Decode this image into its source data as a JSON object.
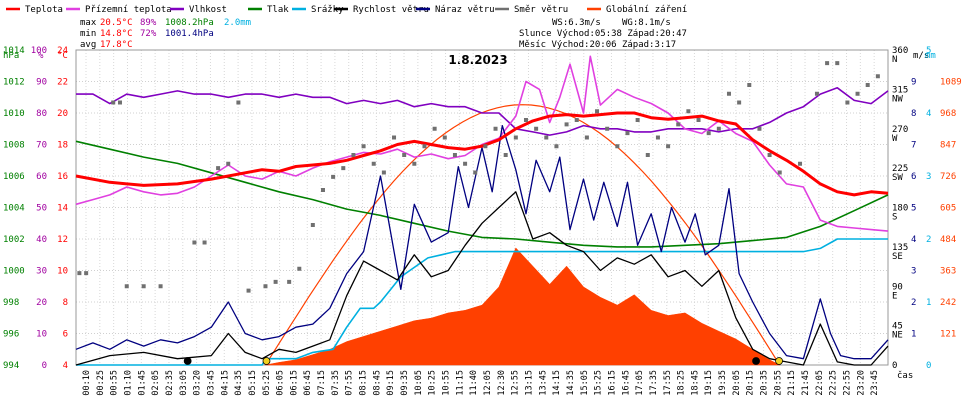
{
  "chart_data": {
    "type": "line",
    "title": "1.8.2023",
    "xlabel": "čas",
    "x_ticks": [
      "00:10",
      "00:25",
      "00:55",
      "01:10",
      "01:45",
      "02:05",
      "02:35",
      "03:05",
      "03:20",
      "03:45",
      "04:15",
      "04:35",
      "05:15",
      "05:25",
      "06:05",
      "06:15",
      "06:45",
      "07:15",
      "07:35",
      "07:55",
      "08:15",
      "08:45",
      "09:15",
      "09:35",
      "10:05",
      "10:25",
      "10:55",
      "11:15",
      "11:40",
      "12:05",
      "12:30",
      "12:55",
      "13:15",
      "13:45",
      "14:15",
      "14:35",
      "15:05",
      "15:25",
      "16:15",
      "16:45",
      "17:05",
      "17:35",
      "17:55",
      "18:25",
      "18:45",
      "19:15",
      "19:35",
      "20:05",
      "20:15",
      "20:35",
      "20:55",
      "21:15",
      "21:45",
      "22:05",
      "22:25",
      "22:55",
      "23:20",
      "23:45"
    ],
    "axes": {
      "hpa": {
        "label": "hPa",
        "color": "#008000",
        "ticks": [
          994,
          996,
          998,
          1000,
          1002,
          1004,
          1006,
          1008,
          1010,
          1012,
          1014
        ]
      },
      "pct": {
        "label": "%",
        "color": "#a000a0",
        "ticks": [
          0,
          10,
          20,
          30,
          40,
          50,
          60,
          70,
          80,
          90,
          100
        ]
      },
      "temp": {
        "label": "°C",
        "color": "#ff0000",
        "ticks": [
          4,
          6,
          8,
          10,
          12,
          14,
          16,
          18,
          20,
          22,
          24
        ]
      },
      "dir": {
        "label": "m/s",
        "color": "#000000",
        "ticks": [
          {
            "v": 0,
            "t": "0"
          },
          {
            "v": 45,
            "t": "45 NE"
          },
          {
            "v": 90,
            "t": "90 E"
          },
          {
            "v": 135,
            "t": "135 SE"
          },
          {
            "v": 180,
            "t": "180 S"
          },
          {
            "v": 225,
            "t": "225 SW"
          },
          {
            "v": 270,
            "t": "270 W"
          },
          {
            "v": 315,
            "t": "315 NW"
          },
          {
            "v": 360,
            "t": "360 N"
          }
        ]
      },
      "ms": {
        "label": "m/s",
        "color": "#000080",
        "ticks": [
          1,
          2,
          3,
          4,
          5,
          6,
          7,
          8,
          9
        ]
      },
      "mm": {
        "label": "mm",
        "color": "#00b0e0",
        "ticks": [
          0,
          1,
          2,
          3,
          4,
          5
        ]
      },
      "rad": {
        "color": "#ff4000",
        "ticks": [
          121,
          242,
          363,
          484,
          605,
          726,
          847,
          968,
          1089
        ]
      }
    },
    "legend": [
      {
        "name": "Teplota",
        "color": "#ff0000"
      },
      {
        "name": "Přízemní teplota",
        "color": "#e040e0"
      },
      {
        "name": "Vlhkost",
        "color": "#8000c0"
      },
      {
        "name": "Tlak",
        "color": "#008000"
      },
      {
        "name": "Srážky",
        "color": "#00b0e0"
      },
      {
        "name": "Rychlost větru",
        "color": "#000000"
      },
      {
        "name": "Náraz větru",
        "color": "#000080"
      },
      {
        "name": "Směr větru",
        "color": "#707070"
      },
      {
        "name": "Globální záření",
        "color": "#ff4000"
      }
    ],
    "stats": {
      "max": {
        "label": "max",
        "temp": "20.5°C",
        "hum": "89%",
        "press": "1008.2hPa",
        "rain": "2.0mm"
      },
      "min": {
        "label": "min",
        "temp": "14.8°C",
        "hum": "72%",
        "press": "1001.4hPa"
      },
      "avg": {
        "label": "avg",
        "temp": "17.8°C"
      }
    },
    "info": {
      "ws": "WS:6.3m/s",
      "wg": "WG:8.1m/s",
      "sun": "Slunce Východ:05:38  Západ:20:47",
      "moon": "Měsíc  Východ:20:06  Západ:3:17"
    },
    "series": [
      {
        "name": "Teplota",
        "color": "#ff0000",
        "axis": "temp",
        "x": [
          0,
          1,
          2,
          3,
          4,
          4.5,
          5,
          5.5,
          6,
          6.5,
          7,
          7.5,
          8,
          8.5,
          9,
          9.5,
          10,
          10.5,
          11,
          11.5,
          12,
          12.5,
          13,
          13.5,
          14,
          14.5,
          15,
          15.5,
          16,
          16.5,
          17,
          17.5,
          18,
          18.5,
          19,
          19.5,
          20,
          20.5,
          21,
          21.5,
          22,
          22.5,
          23,
          23.5,
          24
        ],
        "y": [
          16,
          15.6,
          15.4,
          15.5,
          15.8,
          16.0,
          16.2,
          16.4,
          16.3,
          16.6,
          16.7,
          16.8,
          17.0,
          17.3,
          17.6,
          18.0,
          18.2,
          18.0,
          17.8,
          17.7,
          17.9,
          18.3,
          19.0,
          19.5,
          19.8,
          19.9,
          19.8,
          19.9,
          20.0,
          20.0,
          19.7,
          19.6,
          19.7,
          19.8,
          19.5,
          19.3,
          18.3,
          17.6,
          17.0,
          16.3,
          15.5,
          15.0,
          14.8,
          15.0,
          14.9
        ]
      },
      {
        "name": "Přízemní teplota",
        "color": "#e040e0",
        "axis": "temp",
        "x": [
          0,
          0.5,
          1,
          1.5,
          2,
          2.5,
          3,
          3.5,
          4,
          4.5,
          5,
          5.5,
          6,
          6.5,
          7,
          7.5,
          8,
          8.5,
          9,
          9.5,
          10,
          10.5,
          11,
          11.5,
          12,
          12.5,
          13,
          13.3,
          13.7,
          14,
          14.3,
          14.6,
          15,
          15.2,
          15.5,
          16,
          16.5,
          17,
          17.5,
          18,
          18.5,
          19,
          19.5,
          20,
          20.5,
          21,
          21.5,
          22,
          22.5,
          23,
          23.5,
          24
        ],
        "y": [
          14.2,
          14.5,
          14.8,
          15.3,
          15.0,
          14.8,
          14.9,
          15.3,
          16.0,
          16.7,
          16.0,
          15.8,
          16.3,
          16.0,
          16.5,
          16.9,
          17.2,
          17.5,
          17.4,
          17.7,
          17.2,
          17.4,
          17.1,
          17.3,
          18.0,
          18.4,
          19.8,
          22.0,
          21.5,
          19.4,
          21.0,
          23.1,
          20.0,
          23.6,
          20.5,
          21.5,
          21.0,
          20.6,
          20.0,
          19.0,
          18.7,
          19.5,
          18.7,
          18.2,
          16.7,
          15.5,
          15.3,
          13.2,
          12.8,
          12.7,
          12.6,
          12.5
        ]
      },
      {
        "name": "Vlhkost",
        "color": "#8000c0",
        "axis": "pct",
        "x": [
          0,
          0.5,
          1,
          1.5,
          2,
          2.5,
          3,
          3.5,
          4,
          4.5,
          5,
          5.5,
          6,
          6.5,
          7,
          7.5,
          8,
          8.5,
          9,
          9.5,
          10,
          10.5,
          11,
          11.5,
          12,
          12.5,
          13,
          13.5,
          14,
          14.5,
          15,
          15.5,
          16,
          16.5,
          17,
          17.5,
          18,
          18.5,
          19,
          19.5,
          20,
          20.5,
          21,
          21.5,
          22,
          22.5,
          23,
          23.5,
          24
        ],
        "y": [
          86,
          86,
          83,
          86,
          85,
          86,
          87,
          86,
          86,
          85,
          86,
          86,
          85,
          86,
          85,
          85,
          83,
          84,
          83,
          84,
          82,
          83,
          82,
          82,
          80,
          80,
          75,
          74,
          73,
          74,
          76,
          75,
          75,
          74,
          74,
          75,
          75,
          75,
          74,
          75,
          75,
          77,
          80,
          82,
          86,
          88,
          84,
          83,
          87
        ]
      },
      {
        "name": "Tlak",
        "color": "#008000",
        "axis": "hpa",
        "x": [
          0,
          1,
          2,
          3,
          4,
          5,
          6,
          7,
          8,
          9,
          10,
          11,
          12,
          13,
          14,
          15,
          16,
          17,
          18,
          19,
          20,
          21,
          22,
          23,
          24
        ],
        "y": [
          1008.2,
          1007.7,
          1007.2,
          1006.8,
          1006.2,
          1005.6,
          1005.0,
          1004.5,
          1003.9,
          1003.5,
          1003.0,
          1002.5,
          1002.1,
          1002.0,
          1001.8,
          1001.6,
          1001.5,
          1001.5,
          1001.6,
          1001.7,
          1001.9,
          1002.1,
          1002.8,
          1003.8,
          1004.8
        ]
      },
      {
        "name": "Srážky",
        "color": "#00b0e0",
        "axis": "mm",
        "x": [
          0,
          5.5,
          5.6,
          6.5,
          7.0,
          7.6,
          8.0,
          8.4,
          8.8,
          9.0,
          9.3,
          9.6,
          10.0,
          10.4,
          10.8,
          11.2,
          12.0,
          13.0,
          14.0,
          15.0,
          16.0,
          17.0,
          18.0,
          19.0,
          20.0,
          21.0,
          21.5,
          22.0,
          22.5,
          23.0,
          24
        ],
        "y": [
          0,
          0,
          0.1,
          0.1,
          0.2,
          0.25,
          0.6,
          0.9,
          0.9,
          1.0,
          1.2,
          1.4,
          1.55,
          1.7,
          1.75,
          1.8,
          1.8,
          1.8,
          1.8,
          1.8,
          1.8,
          1.8,
          1.8,
          1.8,
          1.8,
          1.8,
          1.8,
          1.85,
          2.0,
          2.0,
          2.0
        ]
      },
      {
        "name": "Rychlost větru",
        "color": "#000000",
        "axis": "ms",
        "x": [
          0,
          1,
          2,
          3,
          4,
          4.5,
          5,
          5.5,
          6,
          6.5,
          7,
          7.5,
          8,
          8.5,
          9,
          9.5,
          10,
          10.5,
          11,
          11.5,
          12,
          12.5,
          13,
          13.5,
          14,
          14.5,
          15,
          15.5,
          16,
          16.5,
          17,
          17.5,
          18,
          18.5,
          19,
          19.5,
          20,
          20.5,
          21,
          21.5,
          22,
          22.5,
          23,
          23.5,
          24
        ],
        "y": [
          0,
          0.3,
          0.4,
          0.2,
          0.3,
          1.0,
          0.4,
          0.2,
          0.5,
          0.4,
          0.6,
          0.8,
          2.2,
          3.3,
          3.0,
          2.7,
          3.5,
          2.8,
          3.0,
          3.8,
          4.5,
          5.0,
          5.5,
          4.0,
          4.2,
          3.8,
          3.6,
          3.0,
          3.4,
          3.2,
          3.5,
          2.8,
          3.0,
          2.5,
          3.0,
          1.5,
          0.5,
          0.2,
          0.1,
          0,
          1.3,
          0.1,
          0,
          0,
          0.6
        ]
      },
      {
        "name": "Náraz větru",
        "color": "#000080",
        "axis": "ms",
        "x": [
          0,
          0.5,
          1,
          1.5,
          2,
          2.5,
          3,
          3.5,
          4,
          4.5,
          5,
          5.5,
          6,
          6.5,
          7,
          7.5,
          8,
          8.5,
          9,
          9.3,
          9.6,
          10,
          10.5,
          11,
          11.3,
          11.6,
          12,
          12.3,
          12.6,
          13,
          13.3,
          13.6,
          14,
          14.3,
          14.6,
          15,
          15.3,
          15.6,
          16,
          16.3,
          16.6,
          17,
          17.3,
          17.6,
          18,
          18.3,
          18.6,
          19,
          19.3,
          19.6,
          20,
          20.5,
          21,
          21.5,
          22,
          22.3,
          22.6,
          23,
          23.5,
          24
        ],
        "y": [
          0.5,
          0.7,
          0.5,
          0.8,
          0.6,
          0.8,
          0.7,
          0.9,
          1.2,
          2.0,
          1.0,
          0.8,
          0.9,
          1.2,
          1.3,
          1.8,
          2.9,
          3.6,
          6.0,
          4.2,
          2.4,
          5.1,
          3.9,
          4.2,
          6.3,
          5.0,
          6.9,
          5.5,
          7.6,
          6.2,
          4.8,
          6.5,
          5.5,
          6.6,
          4.3,
          5.9,
          4.6,
          5.8,
          4.4,
          5.8,
          3.8,
          4.8,
          3.6,
          5.0,
          3.9,
          4.8,
          3.5,
          3.8,
          5.6,
          2.9,
          2.0,
          1.0,
          0.3,
          0.2,
          2.1,
          1.0,
          0.3,
          0.2,
          0.2,
          0.8
        ]
      },
      {
        "name": "Globální záření",
        "color": "#ff4000",
        "axis": "rad",
        "x": [
          5.6,
          6,
          6.5,
          7,
          7.5,
          8,
          8.5,
          9,
          9.5,
          10,
          10.5,
          11,
          11.5,
          12,
          12.5,
          13,
          13.5,
          14,
          14.5,
          15,
          15.5,
          16,
          16.5,
          17,
          17.5,
          18,
          18.5,
          19,
          19.5,
          20,
          20.5,
          20.8
        ],
        "y": [
          0,
          10,
          20,
          40,
          60,
          90,
          110,
          130,
          150,
          170,
          180,
          200,
          210,
          230,
          300,
          450,
          380,
          310,
          380,
          300,
          260,
          230,
          270,
          210,
          190,
          200,
          160,
          130,
          100,
          60,
          20,
          0
        ]
      }
    ],
    "solar_theoretical": {
      "name": "Globální záření (teoretické)",
      "color": "#ff4000",
      "axis": "rad",
      "start": 5.6,
      "end": 20.8,
      "peak": 1000
    },
    "wind_direction_points": {
      "name": "Směr větru",
      "color": "#707070",
      "axis": "dir",
      "x": [
        0.1,
        0.3,
        1.1,
        1.3,
        1.5,
        2.0,
        2.5,
        3.5,
        3.8,
        4.2,
        4.5,
        4.8,
        5.1,
        5.6,
        5.9,
        6.3,
        6.6,
        7.0,
        7.3,
        7.6,
        7.9,
        8.2,
        8.5,
        8.8,
        9.1,
        9.4,
        9.7,
        10.0,
        10.3,
        10.6,
        10.9,
        11.2,
        11.5,
        11.8,
        12.1,
        12.4,
        12.7,
        13.0,
        13.3,
        13.6,
        13.9,
        14.2,
        14.5,
        14.8,
        15.1,
        15.4,
        15.7,
        16.0,
        16.3,
        16.6,
        16.9,
        17.2,
        17.5,
        17.8,
        18.1,
        18.4,
        18.7,
        19.0,
        19.3,
        19.6,
        19.9,
        20.2,
        20.5,
        20.8,
        21.4,
        21.9,
        22.2,
        22.5,
        22.8,
        23.1,
        23.4,
        23.7
      ],
      "y": [
        105,
        105,
        300,
        300,
        90,
        90,
        90,
        140,
        140,
        225,
        230,
        300,
        85,
        90,
        95,
        95,
        110,
        160,
        200,
        215,
        225,
        240,
        250,
        230,
        220,
        260,
        240,
        230,
        250,
        270,
        260,
        240,
        230,
        220,
        250,
        270,
        240,
        260,
        280,
        270,
        260,
        250,
        275,
        280,
        260,
        290,
        270,
        250,
        265,
        280,
        240,
        260,
        250,
        275,
        290,
        280,
        265,
        270,
        310,
        300,
        320,
        270,
        240,
        220,
        230,
        310,
        345,
        345,
        300,
        310,
        320,
        330
      ]
    }
  }
}
